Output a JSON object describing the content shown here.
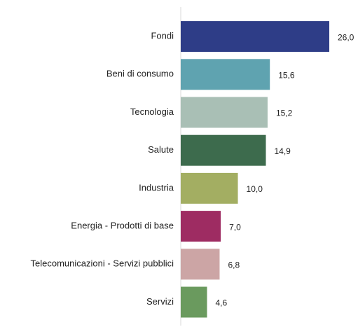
{
  "chart_data": {
    "type": "barh",
    "categories": [
      "Fondi",
      "Beni di consumo",
      "Tecnologia",
      "Salute",
      "Industria",
      "Energia - Prodotti di base",
      "Telecomunicazioni - Servizi pubblici",
      "Servizi"
    ],
    "values": [
      26.0,
      15.6,
      15.2,
      14.9,
      10.0,
      7.0,
      6.8,
      4.6
    ],
    "value_labels": [
      "26,0",
      "15,6",
      "15,2",
      "14,9",
      "10,0",
      "7,0",
      "6,8",
      "4,6"
    ],
    "colors": [
      "#2e3d87",
      "#5fa3b0",
      "#a9bfb5",
      "#3d6b4d",
      "#a3ae62",
      "#9e2c62",
      "#cca5a5",
      "#6a9a5e"
    ]
  }
}
